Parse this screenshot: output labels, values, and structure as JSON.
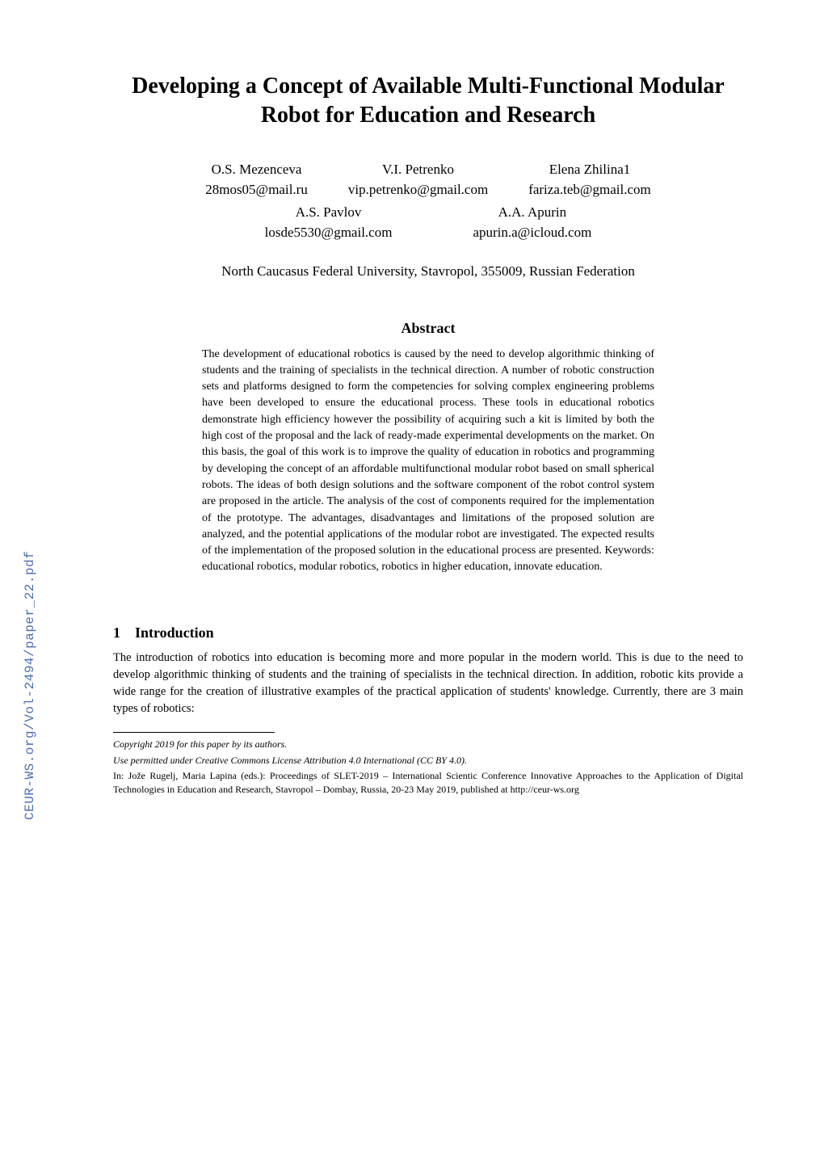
{
  "sidebar": {
    "text": "CEUR-WS.org/Vol-2494/paper_22.pdf",
    "color": "#4a6fb5"
  },
  "title": "Developing a Concept of Available Multi-Functional Modular Robot for Education and Research",
  "authors": {
    "row1": [
      {
        "name": "O.S. Mezenceva",
        "email": "28mos05@mail.ru"
      },
      {
        "name": "V.I. Petrenko",
        "email": "vip.petrenko@gmail.com"
      },
      {
        "name": "Elena Zhilina1",
        "email": "fariza.teb@gmail.com"
      }
    ],
    "row2": [
      {
        "name": "A.S. Pavlov",
        "email": "losde5530@gmail.com"
      },
      {
        "name": "A.A. Apurin",
        "email": "apurin.a@icloud.com"
      }
    ]
  },
  "affiliation": "North Caucasus Federal University, Stavropol, 355009, Russian Federation",
  "abstract": {
    "heading": "Abstract",
    "body": "The development of educational robotics is caused by the need to develop algorithmic thinking of students and the training of specialists in the technical direction. A number of robotic construction sets and platforms designed to form the competencies for solving complex engineering problems have been developed to ensure the educational process. These tools in educational robotics demonstrate high efficiency however the possibility of acquiring such a kit is limited by both the high cost of the proposal and the lack of ready-made experimental developments on the market. On this basis, the goal of this work is to improve the quality of education in robotics and programming by developing the concept of an affordable multifunctional modular robot based on small spherical robots. The ideas of both design solutions and the software component of the robot control system are proposed in the article. The analysis of the cost of components required for the implementation of the prototype. The advantages, disadvantages and limitations of the proposed solution are analyzed, and the potential applications of the modular robot are investigated. The expected results of the implementation of the proposed solution in the educational process are presented. Keywords: educational robotics, modular robotics, robotics in higher education, innovate education."
  },
  "section1": {
    "number": "1",
    "title": "Introduction",
    "body": "The introduction of robotics into education is becoming more and more popular in the modern world. This is due to the need to develop algorithmic thinking of students and the training of specialists in the technical direction. In addition, robotic kits provide a wide range for the creation of illustrative examples of the practical application of students' knowledge. Currently, there are 3 main types of robotics:"
  },
  "footnotes": {
    "copyright": "Copyright 2019 for this paper by its authors.",
    "license": "Use permitted under Creative Commons License Attribution 4.0 International (CC BY 4.0).",
    "proceedings": "In: Jože Rugelj, Maria Lapina (eds.): Proceedings of SLET-2019 – International Scientic Conference Innovative Approaches to the Application of Digital Technologies in Education and Research, Stavropol – Dombay, Russia, 20-23 May 2019, published at http://ceur-ws.org"
  },
  "typography": {
    "title_fontsize": 28,
    "author_fontsize": 17,
    "abstract_heading_fontsize": 18,
    "abstract_body_fontsize": 14,
    "section_heading_fontsize": 18,
    "body_fontsize": 14.5,
    "footnote_fontsize": 12,
    "sidebar_fontsize": 16
  },
  "colors": {
    "text": "#000000",
    "background": "#ffffff",
    "sidebar_link": "#4a6fb5"
  }
}
